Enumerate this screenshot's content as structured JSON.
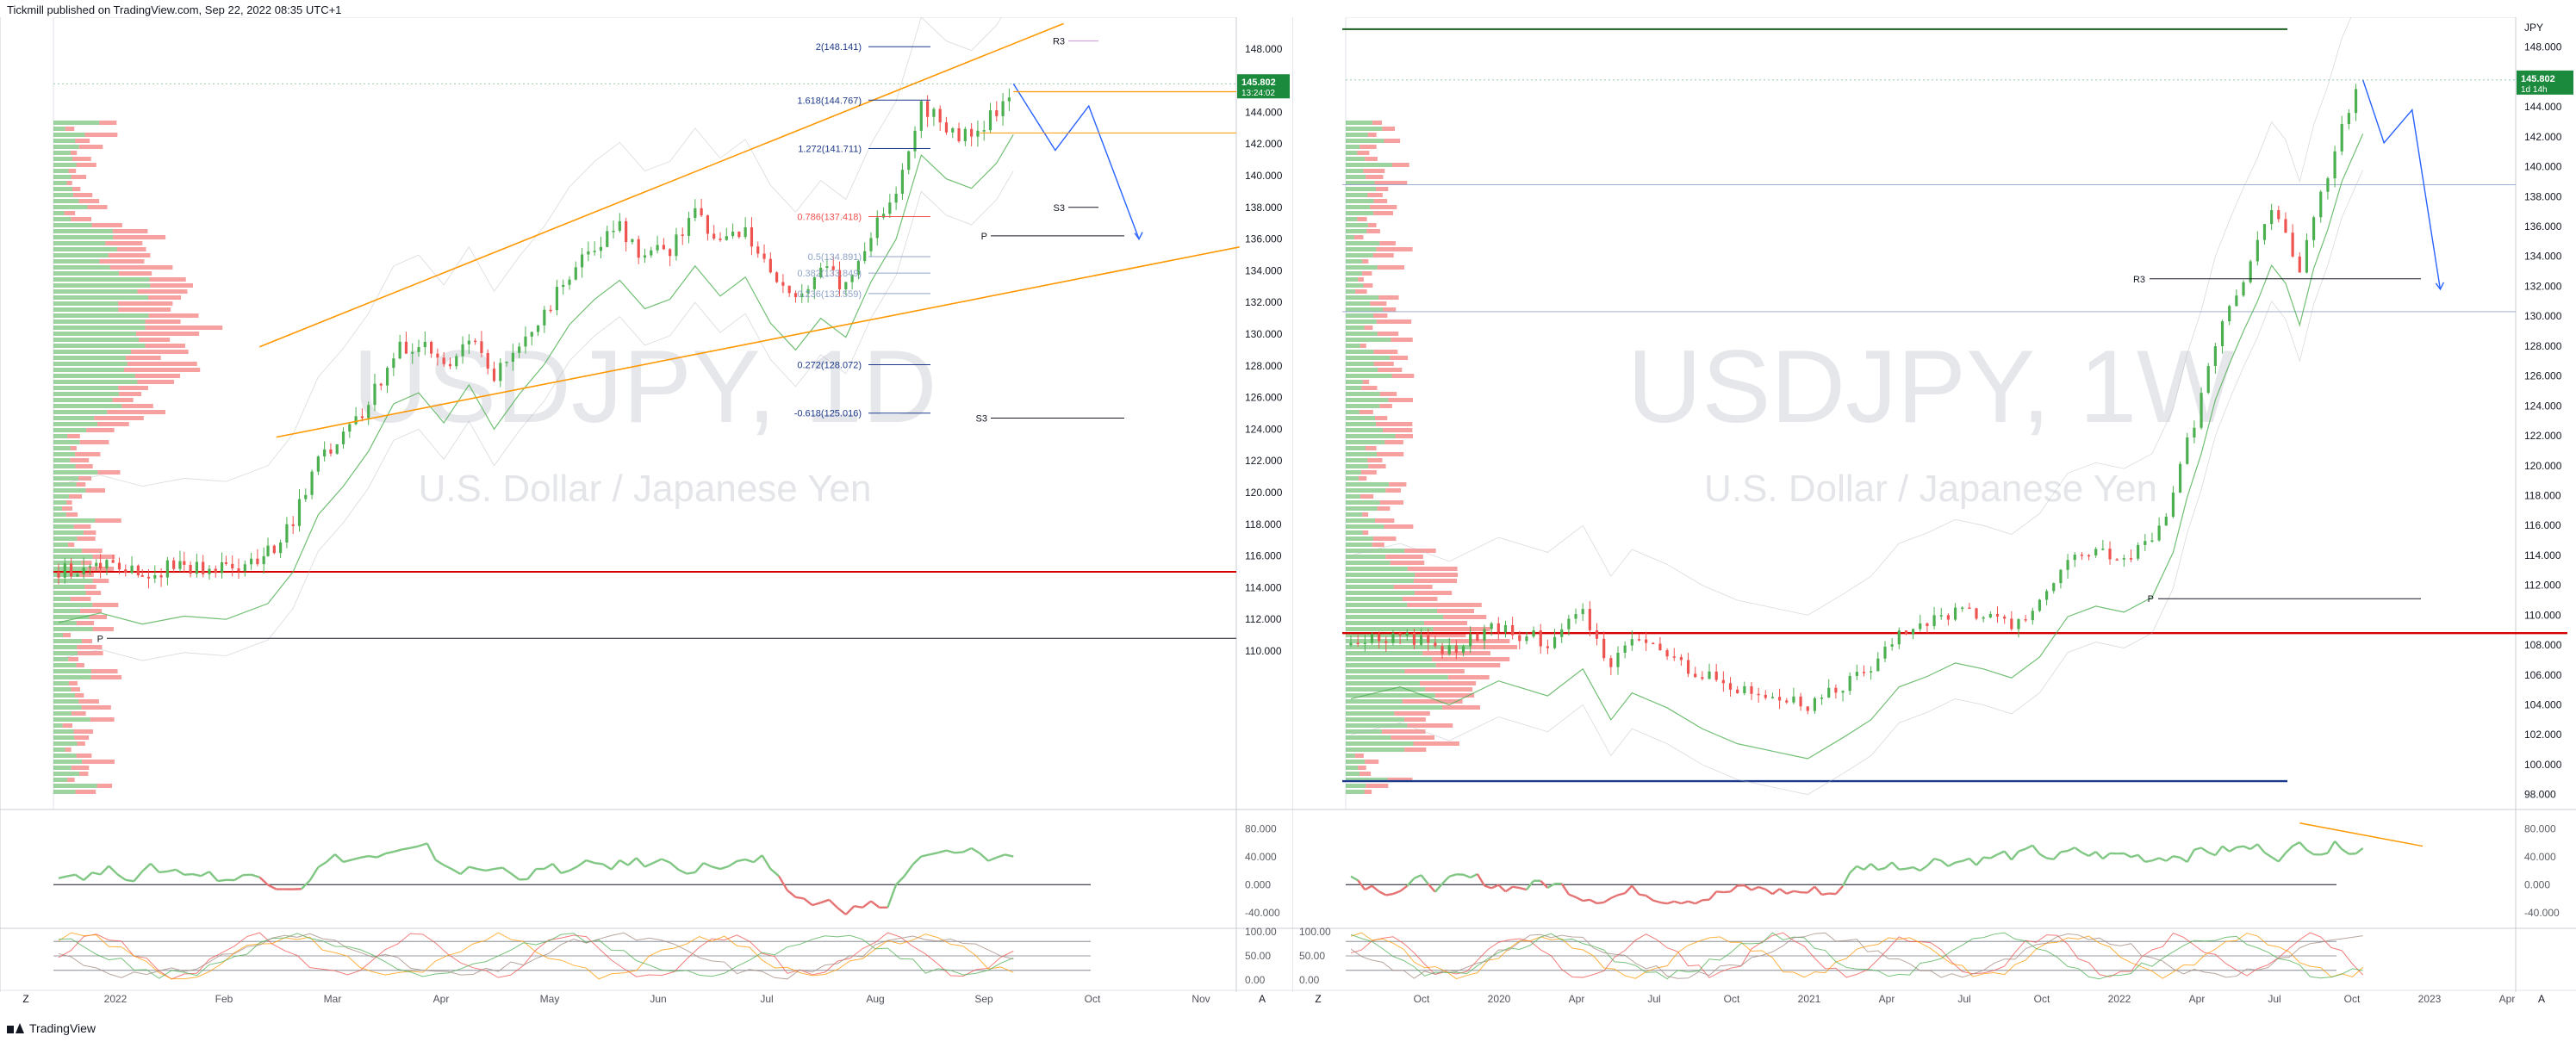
{
  "header": {
    "text": "Tickmill published on TradingView.com, Sep 22, 2022 08:35 UTC+1"
  },
  "footer": {
    "brand": "TradingView"
  },
  "colors": {
    "up": "#4caf50",
    "down": "#ef5350",
    "channel": "#ff9800",
    "forecast": "#2962ff",
    "price_tag": "#1b8a3c",
    "red_level": "#d50000",
    "blue_level": "#1e3a8a"
  },
  "chart_data": [
    {
      "type": "candlestick",
      "symbol": "USDJPY, 1D",
      "subtitle": "U.S. Dollar / Japanese Yen",
      "last_price": "145.802",
      "countdown": "13:24:02",
      "ylim": [
        100.0,
        150.0
      ],
      "y_ticks": [
        "148.000",
        "146.000",
        "144.000",
        "142.000",
        "140.000",
        "138.000",
        "136.000",
        "134.000",
        "132.000",
        "130.000",
        "128.000",
        "126.000",
        "124.000",
        "122.000",
        "120.000",
        "118.000",
        "116.000",
        "114.000",
        "112.000",
        "110.000"
      ],
      "x_ticks": [
        "2022",
        "Feb",
        "Mar",
        "Apr",
        "May",
        "Jun",
        "Jul",
        "Aug",
        "Sep",
        "Oct",
        "Nov"
      ],
      "fib_levels": [
        {
          "label": "2(148.141)",
          "price": 148.141
        },
        {
          "label": "1.618(144.767)",
          "price": 144.767
        },
        {
          "label": "1.272(141.711)",
          "price": 141.711
        },
        {
          "label": "0.786(137.418)",
          "price": 137.418
        },
        {
          "label": "0.5(134.891)",
          "price": 134.891
        },
        {
          "label": "0.382(133.849)",
          "price": 133.849
        },
        {
          "label": "0.236(132.559)",
          "price": 132.559
        },
        {
          "label": "0.272(128.072)",
          "price": 128.072
        },
        {
          "label": "-0.618(125.016)",
          "price": 125.016
        }
      ],
      "pivots": [
        {
          "label": "R3",
          "price": 148.5
        },
        {
          "label": "S3",
          "price": 138.0
        },
        {
          "label": "P",
          "price": 136.2
        },
        {
          "label": "S3",
          "price": 124.7
        },
        {
          "label": "P",
          "price": 110.8
        }
      ],
      "horizontal_levels": [
        115.0
      ],
      "path": [
        [
          0,
          115.0
        ],
        [
          10,
          115.6
        ],
        [
          20,
          114.9
        ],
        [
          30,
          115.4
        ],
        [
          40,
          115.2
        ],
        [
          50,
          116.2
        ],
        [
          56,
          118.2
        ],
        [
          62,
          121.8
        ],
        [
          68,
          123.6
        ],
        [
          74,
          125.8
        ],
        [
          80,
          128.8
        ],
        [
          86,
          129.5
        ],
        [
          92,
          127.6
        ],
        [
          98,
          130.0
        ],
        [
          104,
          127.2
        ],
        [
          110,
          129.4
        ],
        [
          116,
          131.3
        ],
        [
          122,
          133.8
        ],
        [
          128,
          135.4
        ],
        [
          134,
          136.6
        ],
        [
          140,
          134.8
        ],
        [
          146,
          135.4
        ],
        [
          152,
          137.5
        ],
        [
          158,
          135.6
        ],
        [
          164,
          136.8
        ],
        [
          170,
          133.9
        ],
        [
          176,
          132.2
        ],
        [
          182,
          134.2
        ],
        [
          188,
          133.0
        ],
        [
          194,
          136.5
        ],
        [
          200,
          139.2
        ],
        [
          206,
          144.5
        ],
        [
          212,
          143.0
        ],
        [
          218,
          142.4
        ],
        [
          224,
          144.0
        ],
        [
          228,
          145.8
        ]
      ],
      "forecast": [
        [
          228,
          145.8
        ],
        [
          238,
          141.6
        ],
        [
          246,
          144.4
        ],
        [
          258,
          136.0
        ]
      ],
      "oscillator_ticks": [
        "80.000",
        "40.000",
        "0.000",
        "-40.000"
      ],
      "stoch_ticks": [
        "100.00",
        "50.00",
        "0.00"
      ]
    },
    {
      "type": "candlestick",
      "symbol": "USDJPY, 1W",
      "subtitle": "U.S. Dollar / Japanese Yen",
      "last_price": "145.802",
      "countdown": "1d 14h",
      "ylim": [
        97.0,
        150.0
      ],
      "y_ticks": [
        "148.000",
        "146.000",
        "144.000",
        "142.000",
        "140.000",
        "138.000",
        "136.000",
        "134.000",
        "132.000",
        "130.000",
        "128.000",
        "126.000",
        "124.000",
        "122.000",
        "120.000",
        "118.000",
        "116.000",
        "114.000",
        "112.000",
        "110.000",
        "108.000",
        "106.000",
        "104.000",
        "102.000",
        "100.000",
        "98.000"
      ],
      "x_ticks": [
        "Oct",
        "2020",
        "Apr",
        "Jul",
        "Oct",
        "2021",
        "Apr",
        "Jul",
        "Oct",
        "2022",
        "Apr",
        "Jul",
        "Oct",
        "2023",
        "Apr"
      ],
      "pivots": [
        {
          "label": "R3",
          "price": 132.5
        },
        {
          "label": "P",
          "price": 111.1
        }
      ],
      "horizontal_levels": [
        149.2,
        138.8,
        130.3,
        108.8,
        98.9
      ],
      "path": [
        [
          0,
          108.0
        ],
        [
          14,
          108.8
        ],
        [
          28,
          107.6
        ],
        [
          42,
          109.2
        ],
        [
          56,
          108.2
        ],
        [
          66,
          110.0
        ],
        [
          74,
          106.6
        ],
        [
          80,
          108.4
        ],
        [
          90,
          107.4
        ],
        [
          100,
          106.0
        ],
        [
          110,
          105.0
        ],
        [
          120,
          104.5
        ],
        [
          130,
          104.0
        ],
        [
          140,
          105.4
        ],
        [
          148,
          106.6
        ],
        [
          156,
          108.8
        ],
        [
          164,
          109.5
        ],
        [
          172,
          110.4
        ],
        [
          180,
          110.0
        ],
        [
          188,
          109.4
        ],
        [
          196,
          110.8
        ],
        [
          204,
          113.5
        ],
        [
          212,
          114.2
        ],
        [
          220,
          113.8
        ],
        [
          228,
          114.8
        ],
        [
          234,
          117.8
        ],
        [
          238,
          121.5
        ],
        [
          242,
          124.4
        ],
        [
          246,
          128.0
        ],
        [
          250,
          130.4
        ],
        [
          254,
          132.6
        ],
        [
          258,
          134.6
        ],
        [
          262,
          137.0
        ],
        [
          266,
          135.8
        ],
        [
          270,
          133.0
        ],
        [
          274,
          136.8
        ],
        [
          278,
          139.4
        ],
        [
          282,
          142.6
        ],
        [
          288,
          145.8
        ]
      ],
      "forecast": [
        [
          288,
          145.8
        ],
        [
          294,
          141.6
        ],
        [
          302,
          143.8
        ],
        [
          310,
          131.8
        ]
      ],
      "oscillator_ticks": [
        "80.000",
        "40.000",
        "0.000",
        "-40.000"
      ],
      "stoch_ticks": [
        "100.00",
        "50.00",
        "0.00"
      ]
    }
  ],
  "ui": {
    "zoom_left": "Z",
    "auto_left": "A",
    "zoom_right": "Z",
    "auto_right": "A",
    "currency": "JPY"
  }
}
